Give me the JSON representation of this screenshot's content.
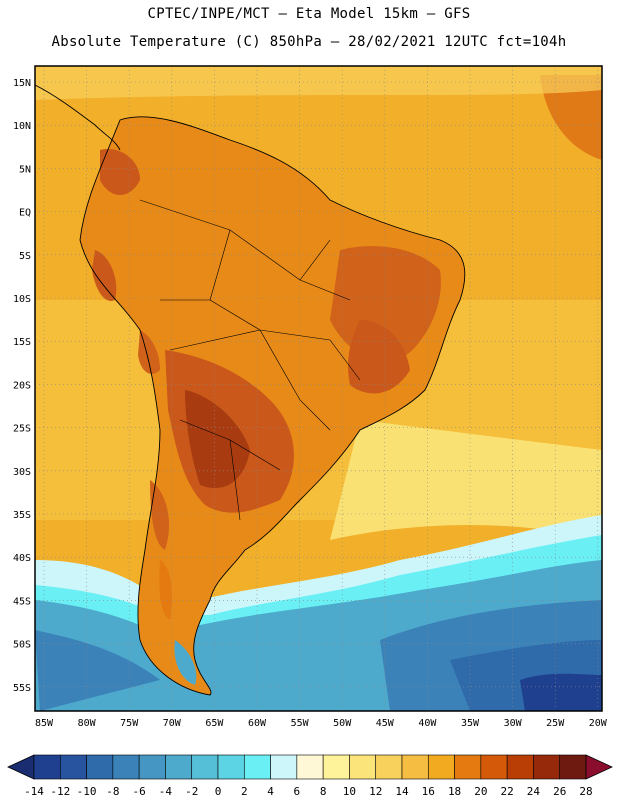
{
  "header": {
    "line1": "CPTEC/INPE/MCT –  Eta Model 15km – GFS",
    "line2": "Absolute Temperature (C) 850hPa – 28/02/2021 12UTC fct=104h"
  },
  "map": {
    "lat_labels": [
      "15N",
      "10N",
      "5N",
      "EQ",
      "5S",
      "10S",
      "15S",
      "20S",
      "25S",
      "30S",
      "35S",
      "40S",
      "45S",
      "50S",
      "55S"
    ],
    "lon_labels": [
      "85W",
      "80W",
      "75W",
      "70W",
      "65W",
      "60W",
      "55W",
      "50W",
      "45W",
      "40W",
      "35W",
      "30W",
      "25W",
      "20W"
    ]
  },
  "colorbar": {
    "labels": [
      "-14",
      "-12",
      "-10",
      "-8",
      "-6",
      "-4",
      "-2",
      "0",
      "2",
      "4",
      "6",
      "8",
      "10",
      "12",
      "14",
      "16",
      "18",
      "20",
      "22",
      "24",
      "26",
      "28"
    ],
    "colors": [
      "#1f3f8f",
      "#27539f",
      "#2f6aab",
      "#3a82b8",
      "#4696c4",
      "#4eaacc",
      "#55bfd8",
      "#5cd4e4",
      "#6af0f4",
      "#cdf6fb",
      "#fff8d6",
      "#fef29a",
      "#fbe47a",
      "#f8d05c",
      "#f5bd42",
      "#f2aa20",
      "#e47a10",
      "#d45a0a",
      "#b83e06",
      "#95290a",
      "#6e1a10"
    ],
    "over_color": "#8a0d2e",
    "under_color": "#1a2d70"
  },
  "colors": {
    "ocean_north": "#f5b42a",
    "land_warm": "#e88a18",
    "land_hot": "#c9581a",
    "cold_south": "#3fb7d8",
    "cold_deep": "#2f6aab",
    "coastline": "#000000"
  }
}
